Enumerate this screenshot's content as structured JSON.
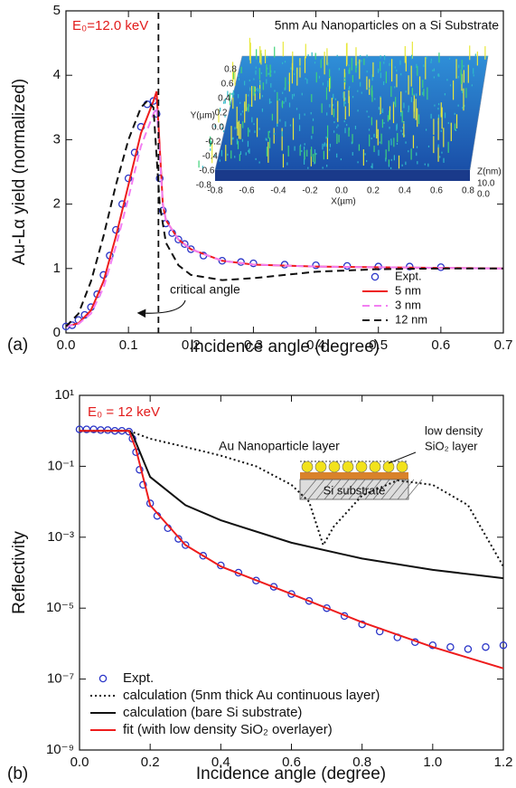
{
  "chart_data": [
    {
      "type": "line",
      "panel_label": "(a)",
      "xlabel": "Incidence angle (degree)",
      "ylabel": "Au-Lα yield (normalized)",
      "xlim": [
        0,
        0.7
      ],
      "ylim": [
        0,
        5
      ],
      "log_y": false,
      "legend": "lower right",
      "xticks": [
        {
          "value": 0,
          "label": "0.0"
        },
        0.1,
        0.2,
        0.3,
        0.4,
        0.5,
        0.6,
        0.7
      ],
      "yticks": [
        0,
        1,
        2,
        3,
        4,
        5
      ],
      "annotations": {
        "energy": "E₀=12.0 keV",
        "title": "5nm Au Nanoparticles on a Si Substrate",
        "critical": "critical angle"
      },
      "critical_angle_x": 0.148,
      "inset": {
        "ylabel": "Y(µm)",
        "xlabel": "X(µm)",
        "zlabel": "Z(nm)",
        "yticks": [
          "0.8",
          "0.6",
          "0.4",
          "0.2",
          "0.0",
          "-0.2",
          "-0.4",
          "-0.6",
          "-0.8"
        ],
        "xticks": [
          "-0.8",
          "-0.6",
          "-0.4",
          "-0.2",
          "0.0",
          "0.2",
          "0.4",
          "0.6",
          "0.8"
        ],
        "zticks": [
          "10.0",
          "0.0"
        ]
      },
      "series": [
        {
          "name": "Expt.",
          "kind": "marker",
          "color": "#2a35c8",
          "x": [
            0,
            0.01,
            0.02,
            0.03,
            0.04,
            0.05,
            0.06,
            0.07,
            0.08,
            0.09,
            0.1,
            0.11,
            0.12,
            0.13,
            0.14,
            0.145,
            0.15,
            0.155,
            0.16,
            0.17,
            0.18,
            0.19,
            0.2,
            0.22,
            0.25,
            0.28,
            0.3,
            0.35,
            0.4,
            0.45,
            0.5,
            0.55,
            0.6
          ],
          "values": [
            0.1,
            0.12,
            0.2,
            0.28,
            0.4,
            0.6,
            0.9,
            1.2,
            1.6,
            2.0,
            2.4,
            2.8,
            3.2,
            3.55,
            3.6,
            3.4,
            2.4,
            1.9,
            1.7,
            1.55,
            1.45,
            1.38,
            1.3,
            1.2,
            1.12,
            1.1,
            1.08,
            1.06,
            1.05,
            1.04,
            1.03,
            1.03,
            1.02
          ]
        },
        {
          "name": "5 nm",
          "kind": "line",
          "dash": "solid",
          "color": "#ee1c1c",
          "x": [
            0,
            0.02,
            0.04,
            0.06,
            0.08,
            0.1,
            0.12,
            0.14,
            0.145,
            0.15,
            0.155,
            0.16,
            0.18,
            0.2,
            0.25,
            0.3,
            0.4,
            0.5,
            0.6,
            0.7
          ],
          "values": [
            0.1,
            0.15,
            0.35,
            0.8,
            1.5,
            2.3,
            3.1,
            3.6,
            3.75,
            2.9,
            2.0,
            1.75,
            1.45,
            1.3,
            1.12,
            1.06,
            1.03,
            1.02,
            1.01,
            1.0
          ]
        },
        {
          "name": "3 nm",
          "kind": "line",
          "dash": "dashed",
          "color": "#f27ef2",
          "x": [
            0,
            0.02,
            0.04,
            0.06,
            0.08,
            0.1,
            0.12,
            0.14,
            0.145,
            0.15,
            0.155,
            0.16,
            0.18,
            0.2,
            0.25,
            0.3,
            0.4,
            0.5,
            0.6,
            0.7
          ],
          "values": [
            0.1,
            0.14,
            0.3,
            0.7,
            1.35,
            2.1,
            2.9,
            3.4,
            3.5,
            2.8,
            2.0,
            1.75,
            1.45,
            1.3,
            1.12,
            1.06,
            1.03,
            1.02,
            1.01,
            1.0
          ]
        },
        {
          "name": "12 nm",
          "kind": "line",
          "dash": "dashed",
          "color": "#111111",
          "x": [
            0,
            0.02,
            0.04,
            0.06,
            0.08,
            0.1,
            0.12,
            0.13,
            0.14,
            0.15,
            0.16,
            0.18,
            0.2,
            0.25,
            0.3,
            0.4,
            0.5,
            0.6,
            0.7
          ],
          "values": [
            0.1,
            0.3,
            0.8,
            1.5,
            2.3,
            3.0,
            3.5,
            3.6,
            3.5,
            2.0,
            1.4,
            1.05,
            0.9,
            0.82,
            0.85,
            0.95,
            0.99,
            1.0,
            1.0
          ]
        }
      ]
    },
    {
      "type": "line",
      "panel_label": "(b)",
      "xlabel": "Incidence angle (degree)",
      "ylabel": "Reflectivity",
      "xlim": [
        0,
        1.2
      ],
      "ylim": [
        1e-09,
        10
      ],
      "log_y": true,
      "legend": "lower left",
      "xticks": [
        {
          "value": 0,
          "label": "0.0"
        },
        0.2,
        0.4,
        0.6,
        0.8,
        {
          "value": 1,
          "label": "1.0"
        },
        1.2
      ],
      "yticks": [
        {
          "value": 10,
          "label": "10¹"
        },
        {
          "value": 0.1,
          "label": "10⁻¹"
        },
        {
          "value": 0.001,
          "label": "10⁻³"
        },
        {
          "value": 1e-05,
          "label": "10⁻⁵"
        },
        {
          "value": 1e-07,
          "label": "10⁻⁷"
        },
        {
          "value": 1e-09,
          "label": "10⁻⁹"
        }
      ],
      "annotations": {
        "energy": "E₀ = 12 keV",
        "layer": "Au Nanoparticle layer",
        "oxide_1": "low density",
        "oxide_2": "SiO₂ layer",
        "substrate": "Si substrate"
      },
      "series": [
        {
          "name": "Expt.",
          "kind": "marker",
          "color": "#2a35c8",
          "x": [
            0,
            0.02,
            0.04,
            0.06,
            0.08,
            0.1,
            0.12,
            0.14,
            0.15,
            0.16,
            0.17,
            0.18,
            0.2,
            0.22,
            0.25,
            0.28,
            0.3,
            0.35,
            0.4,
            0.45,
            0.5,
            0.55,
            0.6,
            0.65,
            0.7,
            0.75,
            0.8,
            0.85,
            0.9,
            0.95,
            1.0,
            1.05,
            1.1,
            1.15,
            1.2
          ],
          "values": [
            1.1,
            1.1,
            1.1,
            1.05,
            1.05,
            1.0,
            1.0,
            0.95,
            0.6,
            0.25,
            0.08,
            0.03,
            0.009,
            0.004,
            0.0018,
            0.0009,
            0.0006,
            0.0003,
            0.00016,
            0.0001,
            6e-05,
            4e-05,
            2.5e-05,
            1.6e-05,
            1e-05,
            6e-06,
            3.5e-06,
            2.2e-06,
            1.5e-06,
            1.1e-06,
            9e-07,
            8e-07,
            7e-07,
            8e-07,
            9e-07
          ]
        },
        {
          "name": "calculation (5nm thick Au continuous layer)",
          "kind": "line",
          "dash": "dotted",
          "color": "#111111",
          "x": [
            0,
            0.14,
            0.2,
            0.3,
            0.4,
            0.5,
            0.6,
            0.65,
            0.69,
            0.72,
            0.8,
            0.9,
            1.0,
            1.1,
            1.2
          ],
          "values": [
            1,
            1,
            0.6,
            0.35,
            0.2,
            0.1,
            0.03,
            0.01,
            0.0006,
            0.002,
            0.015,
            0.04,
            0.03,
            0.008,
            0.00015
          ]
        },
        {
          "name": "calculation (bare Si substrate)",
          "kind": "line",
          "dash": "solid",
          "color": "#111111",
          "x": [
            0,
            0.14,
            0.15,
            0.2,
            0.3,
            0.4,
            0.6,
            0.8,
            1.0,
            1.2
          ],
          "values": [
            1,
            1,
            0.8,
            0.05,
            0.008,
            0.003,
            0.0007,
            0.00025,
            0.00012,
            7e-05
          ]
        },
        {
          "name": "fit (with low density SiO₂ overlayer)",
          "kind": "line",
          "dash": "solid",
          "color": "#ee1c1c",
          "x": [
            0,
            0.14,
            0.16,
            0.2,
            0.3,
            0.4,
            0.6,
            0.8,
            1.0,
            1.2
          ],
          "values": [
            1,
            1,
            0.3,
            0.008,
            0.0006,
            0.00015,
            2.5e-05,
            4e-06,
            8e-07,
            2e-07
          ]
        }
      ]
    }
  ]
}
